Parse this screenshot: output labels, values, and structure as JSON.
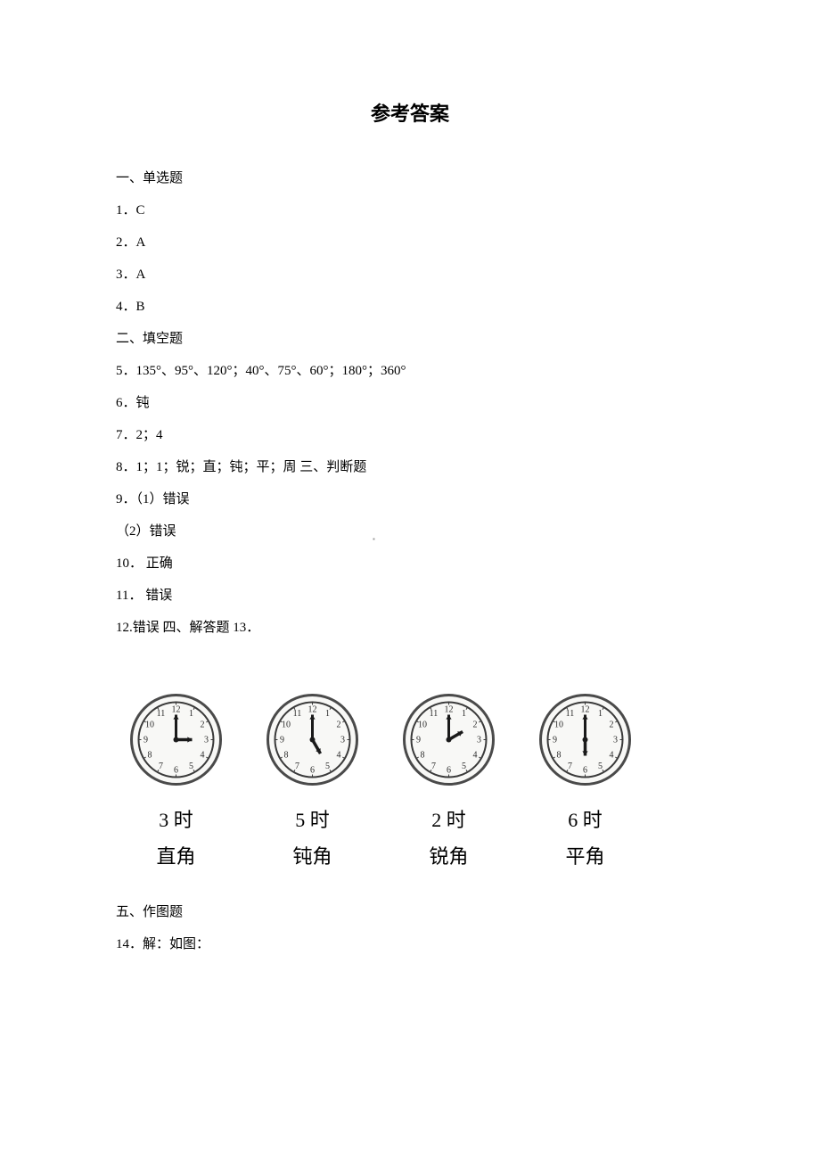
{
  "title": "参考答案",
  "section1": "一、单选题",
  "q1": "1．C",
  "q2": "2．A",
  "q3": "3．A",
  "q4": "4．B",
  "section2": "二、填空题",
  "q5": "5．135°、95°、120°；40°、75°、60°；180°；360°",
  "q6": "6．钝",
  "q7": "7．2；4",
  "q8": "8．1；1；锐；直；钝；平；周  三、判断题",
  "q9a": "9．（1）错误",
  "q9b": "（2）错误",
  "q10": "10．  正确",
  "q11": "11．  错误",
  "q12": "12.错误  四、解答题   13．",
  "section5": "五、作图题",
  "q14": "14．解：如图：",
  "clocks": [
    {
      "time": "3 时",
      "type": "直角",
      "hour_angle": 0,
      "minute_angle": -90
    },
    {
      "time": "5 时",
      "type": "钝角",
      "hour_angle": 60,
      "minute_angle": -90
    },
    {
      "time": "2 时",
      "type": "锐角",
      "hour_angle": -30,
      "minute_angle": -90
    },
    {
      "time": "6 时",
      "type": "平角",
      "hour_angle": 90,
      "minute_angle": -90
    }
  ],
  "clock_style": {
    "outer_stroke": "#4a4a4a",
    "outer_width": 3,
    "inner_stroke": "#3a3a3a",
    "inner_width": 2,
    "hand_color": "#1a1a1a",
    "number_color": "#2a2a2a",
    "number_fontsize": 10,
    "bg": "#f8f8f6"
  }
}
